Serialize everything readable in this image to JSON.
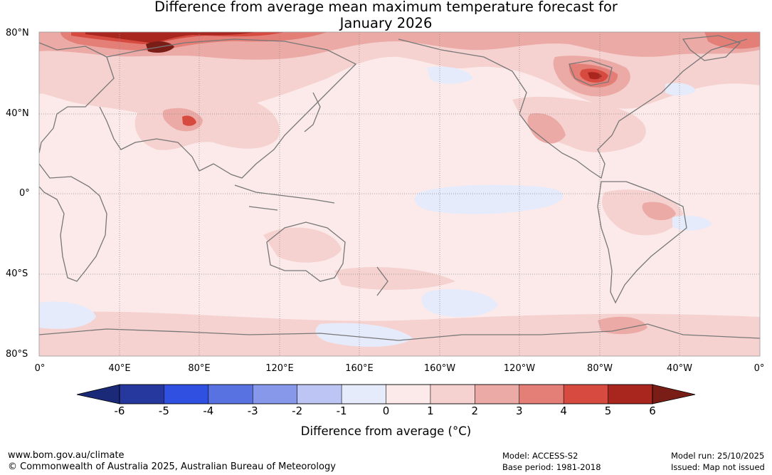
{
  "title": {
    "line1": "Difference from average mean maximum temperature forecast for",
    "line2": "January 2026"
  },
  "map": {
    "lat_labels": [
      "80°N",
      "40°N",
      "0°",
      "40°S",
      "80°S"
    ],
    "lon_labels": [
      "0°",
      "40°E",
      "80°E",
      "120°E",
      "160°E",
      "160°W",
      "120°W",
      "80°W",
      "40°W",
      "0°"
    ],
    "coastline_color": "#777777",
    "gridline_color": "#8a8a8a"
  },
  "legend": {
    "ticks": [
      "-6",
      "-5",
      "-4",
      "-3",
      "-2",
      "-1",
      "0",
      "1",
      "2",
      "3",
      "4",
      "5",
      "6"
    ],
    "colors": [
      "#26389e",
      "#2f50e0",
      "#5872e2",
      "#8797ea",
      "#bcc5f3",
      "#e6ebfb",
      "#fbeae9",
      "#f5d2d0",
      "#ecaaa6",
      "#e47f78",
      "#d74a40",
      "#a9261f"
    ],
    "under_color": "#1b2a78",
    "over_color": "#7a1d17",
    "label": "Difference from average (°C)"
  },
  "footer": {
    "website": "www.bom.gov.au/climate",
    "copyright": "© Commonwealth of Australia 2025, Australian Bureau of Meteorology",
    "model": "Model: ACCESS-S2",
    "base_period": "Base period: 1981-2018",
    "model_run": "Model run: 25/10/2025",
    "issued": "Issued: Map not issued"
  }
}
